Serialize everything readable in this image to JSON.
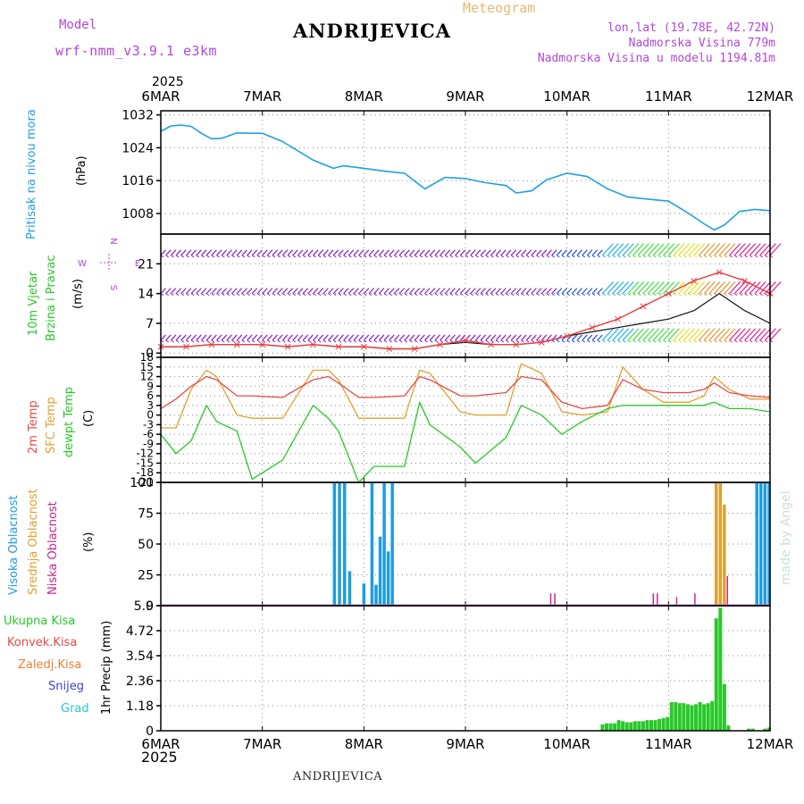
{
  "header": {
    "model_label": "Model",
    "model_name": "wrf-nmm_v3.9.1 e3km",
    "title": "ANDRIJEVICA",
    "meteogram": "Meteogram",
    "lonlat": "lon,lat (19.78E, 42.72N)",
    "altitude": "Nadmorska Visina 779m",
    "model_altitude": "Nadmorska Visina u modelu 1194.81m",
    "year_top": "2025",
    "year_bottom": "2025",
    "footer_title": "ANDRIJEVICA",
    "watermark": "made by Angel"
  },
  "colors": {
    "pressure": "#1ea0e6",
    "wind_purple": "#8a1fc8",
    "wind_speed": "#e84040",
    "gust_line": "#111111",
    "temp2m": "#e84848",
    "sfc_temp": "#e0a030",
    "dewpt": "#28c828",
    "high_cloud": "#1f9de0",
    "mid_cloud": "#e0a030",
    "low_cloud": "#c8288c",
    "precip": "#28c828",
    "convective": "#e84848",
    "frozen": "#f08030",
    "snow": "#4040e0",
    "hail": "#28c8c8"
  },
  "chart_data": [
    {
      "type": "line",
      "name": "pressure",
      "title": "Pritisak na nivou mora",
      "ylabel": "(hPa)",
      "x_ticks": [
        "6MAR",
        "7MAR",
        "8MAR",
        "9MAR",
        "10MAR",
        "11MAR",
        "12MAR"
      ],
      "ylim": [
        1003,
        1033
      ],
      "y_ticks": [
        1008,
        1016,
        1024,
        1032
      ],
      "x": [
        0,
        0.1,
        0.2,
        0.3,
        0.4,
        0.5,
        0.6,
        0.75,
        1.0,
        1.2,
        1.5,
        1.7,
        1.8,
        2.0,
        2.2,
        2.4,
        2.6,
        2.8,
        3.0,
        3.2,
        3.4,
        3.5,
        3.65,
        3.8,
        4.0,
        4.2,
        4.4,
        4.6,
        4.8,
        5.0,
        5.2,
        5.35,
        5.45,
        5.55,
        5.7,
        5.85,
        6.0
      ],
      "series": [
        {
          "name": "Pritisak",
          "values": [
            1028,
            1029.3,
            1029.5,
            1029.2,
            1027.5,
            1026.2,
            1026.3,
            1027.6,
            1027.5,
            1025.5,
            1021,
            1019,
            1019.6,
            1019,
            1018.3,
            1017.8,
            1014,
            1016.8,
            1016.5,
            1015.5,
            1014.8,
            1013,
            1013.5,
            1016.2,
            1017.8,
            1017,
            1014,
            1012,
            1011.5,
            1011,
            1008,
            1005.5,
            1004,
            1005.2,
            1008.5,
            1009,
            1008.7
          ]
        }
      ]
    },
    {
      "type": "line",
      "name": "wind",
      "title": "10m Vjetar",
      "subtitle": "Brzina i Pravac",
      "ylabel": "(m/s)",
      "compass": {
        "north": "N",
        "south": "S",
        "east": "E",
        "west": "W"
      },
      "x_ticks": [
        "6MAR",
        "7MAR",
        "8MAR",
        "9MAR",
        "10MAR",
        "11MAR",
        "12MAR"
      ],
      "ylim": [
        -1,
        28
      ],
      "y_ticks": [
        0,
        7,
        14,
        21
      ],
      "barb_rows": [
        3,
        14,
        23
      ],
      "x": [
        0,
        0.25,
        0.5,
        0.75,
        1.0,
        1.25,
        1.5,
        1.75,
        2.0,
        2.25,
        2.5,
        2.75,
        3.0,
        3.25,
        3.5,
        3.75,
        4.0,
        4.25,
        4.5,
        4.75,
        5.0,
        5.25,
        5.5,
        5.75,
        6.0
      ],
      "series": [
        {
          "name": "Brzina",
          "values": [
            1.5,
            1.5,
            2,
            2,
            2,
            1.5,
            2,
            1.5,
            1.5,
            1,
            1,
            2,
            3,
            2,
            2,
            2.5,
            4,
            6,
            8,
            11,
            14,
            17,
            19,
            17,
            14
          ]
        },
        {
          "name": "Udari",
          "values": [
            1.5,
            1.5,
            2,
            2,
            2,
            1.5,
            2,
            1.5,
            1.5,
            1,
            1,
            2,
            2.5,
            2,
            2,
            2.5,
            4,
            5,
            6,
            7,
            8,
            10,
            14,
            10,
            7
          ]
        }
      ]
    },
    {
      "type": "line",
      "name": "temperature",
      "title": "2m Temp",
      "title2": "SFC Temp",
      "title3": "dewpt Temp",
      "ylabel": "(C)",
      "x_ticks": [
        "6MAR",
        "7MAR",
        "8MAR",
        "9MAR",
        "10MAR",
        "11MAR",
        "12MAR"
      ],
      "ylim": [
        -21,
        18
      ],
      "y_ticks": [
        -21,
        -18,
        -15,
        -12,
        -9,
        -6,
        -3,
        0,
        3,
        6,
        9,
        12,
        15,
        18
      ],
      "x": [
        0,
        0.15,
        0.3,
        0.45,
        0.55,
        0.75,
        0.9,
        1.2,
        1.5,
        1.65,
        1.75,
        1.95,
        2.1,
        2.4,
        2.55,
        2.65,
        2.95,
        3.1,
        3.4,
        3.55,
        3.75,
        3.95,
        4.15,
        4.4,
        4.55,
        4.75,
        4.95,
        5.2,
        5.35,
        5.45,
        5.6,
        5.8,
        6.0
      ],
      "series": [
        {
          "name": "2m Temp",
          "values": [
            2,
            5,
            9,
            12,
            11,
            6,
            6,
            5.5,
            11,
            12,
            10,
            5.5,
            5.5,
            6,
            12,
            11,
            6,
            6,
            7,
            12,
            11,
            4,
            2,
            3,
            11,
            8,
            7,
            7,
            8,
            10,
            7,
            6,
            5.5
          ]
        },
        {
          "name": "SFC Temp",
          "values": [
            -4,
            -4,
            8,
            14,
            12,
            0,
            -1,
            -1,
            14,
            14,
            11,
            -1,
            -1,
            -1,
            14,
            13,
            1,
            0,
            0,
            16,
            13,
            1,
            0,
            1,
            15,
            8,
            4,
            4,
            6,
            12,
            8,
            5,
            5
          ]
        },
        {
          "name": "dewpt Temp",
          "values": [
            -6,
            -12,
            -8,
            3,
            -2,
            -5,
            -20,
            -14,
            3,
            -1,
            -5,
            -21,
            -16,
            -16,
            4,
            -3,
            -10,
            -15,
            -7,
            3,
            0,
            -6,
            -2,
            2,
            3,
            3,
            3,
            3,
            3,
            4,
            2,
            2,
            1
          ]
        }
      ]
    },
    {
      "type": "bar",
      "name": "clouds",
      "title": "Visoka Oblacnost",
      "title2": "Srednja Oblacnost",
      "title3": "Niska Oblacnost",
      "ylabel": "(%)",
      "x_ticks": [
        "6MAR",
        "7MAR",
        "8MAR",
        "9MAR",
        "10MAR",
        "11MAR",
        "12MAR"
      ],
      "ylim": [
        0,
        100
      ],
      "y_ticks": [
        0,
        25,
        50,
        75,
        100
      ],
      "series": [
        {
          "name": "Visoka Oblacnost",
          "x": [
            1.71,
            1.76,
            1.81,
            1.86,
            2.0,
            2.08,
            2.12,
            2.16,
            2.2,
            2.24,
            2.28,
            5.87,
            5.91,
            5.95,
            5.99
          ],
          "values": [
            100,
            100,
            100,
            28,
            18,
            100,
            17,
            56,
            100,
            44,
            100,
            100,
            100,
            100,
            100
          ]
        },
        {
          "name": "Srednja Oblacnost",
          "x": [
            5.47,
            5.51,
            5.55
          ],
          "values": [
            100,
            100,
            82
          ]
        },
        {
          "name": "Niska Oblacnost",
          "x": [
            3.84,
            3.88,
            4.85,
            4.89,
            5.08,
            5.26,
            5.58
          ],
          "values": [
            10,
            10,
            10,
            10,
            7,
            10,
            24
          ]
        }
      ]
    },
    {
      "type": "bar",
      "name": "precipitation",
      "legend": [
        "Ukupna Kisa",
        "Konvek.Kisa",
        "Zaledj.Kisa",
        "Snijeg",
        "Grad"
      ],
      "ylabel": "1hr Precip (mm)",
      "x_ticks": [
        "6MAR",
        "7MAR",
        "8MAR",
        "9MAR",
        "10MAR",
        "11MAR",
        "12MAR"
      ],
      "ylim": [
        0,
        5.9
      ],
      "y_ticks": [
        0,
        1.18,
        2.36,
        3.54,
        4.72,
        5.9
      ],
      "series": [
        {
          "name": "Ukupna Kisa",
          "x": [
            4.35,
            4.39,
            4.43,
            4.47,
            4.51,
            4.55,
            4.59,
            4.63,
            4.67,
            4.71,
            4.75,
            4.79,
            4.83,
            4.87,
            4.91,
            4.95,
            4.99,
            5.03,
            5.07,
            5.11,
            5.15,
            5.19,
            5.23,
            5.27,
            5.31,
            5.35,
            5.39,
            5.43,
            5.47,
            5.51,
            5.55,
            5.59,
            5.79,
            5.83,
            5.95,
            5.99
          ],
          "values": [
            0.3,
            0.35,
            0.35,
            0.35,
            0.5,
            0.45,
            0.4,
            0.4,
            0.45,
            0.45,
            0.45,
            0.5,
            0.5,
            0.5,
            0.55,
            0.6,
            0.65,
            1.35,
            1.35,
            1.3,
            1.3,
            1.25,
            1.2,
            1.25,
            1.35,
            1.25,
            1.3,
            1.4,
            5.3,
            5.8,
            2.2,
            0.25,
            0.1,
            0.1,
            0.1,
            0.15
          ]
        }
      ]
    }
  ]
}
